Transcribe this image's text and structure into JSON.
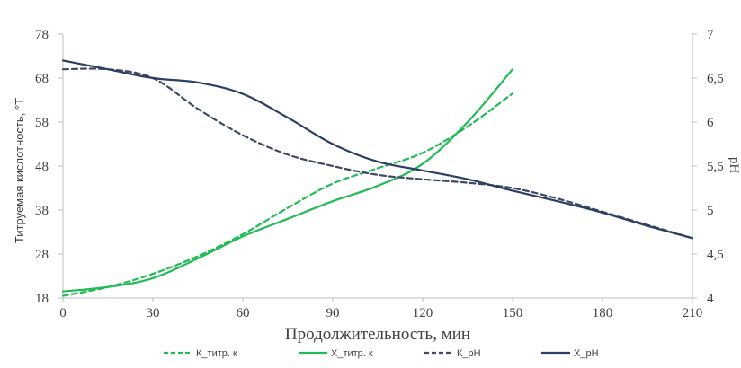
{
  "chart_data": {
    "type": "line",
    "xlabel": "Продолжительность, мин",
    "ylabel": "Титруемая кислотность, °Т",
    "y2label": "pH",
    "x_ticks": [
      "0",
      "30",
      "60",
      "90",
      "120",
      "150",
      "180",
      "210"
    ],
    "y_ticks": [
      "18",
      "28",
      "38",
      "48",
      "58",
      "68",
      "78"
    ],
    "y2_ticks": [
      "4",
      "4,5",
      "5",
      "5,5",
      "6",
      "6,5",
      "7"
    ],
    "xlim": [
      0,
      210
    ],
    "ylim": [
      18,
      78
    ],
    "y2lim": [
      4,
      7
    ],
    "grid": false,
    "legend_position": "bottom",
    "colors": {
      "green": "#22bb55",
      "navy": "#2d3e63",
      "axis": "#bfbfbf"
    },
    "series": [
      {
        "name": "К_титр. к",
        "axis": "left",
        "style": "dashed",
        "color": "#22bb55",
        "x": [
          0,
          15,
          30,
          45,
          60,
          75,
          90,
          105,
          120,
          135,
          150
        ],
        "values": [
          18.5,
          20.5,
          23.5,
          27.5,
          32.5,
          38.5,
          44,
          47.5,
          51,
          57,
          64.5
        ]
      },
      {
        "name": "Х_титр. к",
        "axis": "left",
        "style": "solid",
        "color": "#22bb55",
        "x": [
          0,
          15,
          30,
          45,
          60,
          75,
          90,
          105,
          120,
          135,
          150
        ],
        "values": [
          19.5,
          20.5,
          22.5,
          27,
          32,
          36,
          40,
          43.5,
          48.5,
          58,
          70
        ]
      },
      {
        "name": "К_pH",
        "axis": "right",
        "style": "dashed",
        "color": "#3d4a66",
        "x": [
          0,
          15,
          30,
          45,
          60,
          75,
          90,
          105,
          120,
          135,
          150,
          165,
          180,
          195,
          210
        ],
        "values": [
          6.6,
          6.6,
          6.5,
          6.15,
          5.85,
          5.63,
          5.5,
          5.4,
          5.35,
          5.31,
          5.25,
          5.13,
          4.98,
          4.83,
          4.68
        ]
      },
      {
        "name": "Х_pH",
        "axis": "right",
        "style": "solid",
        "color": "#2d3e63",
        "x": [
          0,
          15,
          30,
          45,
          60,
          75,
          90,
          105,
          120,
          135,
          150,
          165,
          180,
          195,
          210
        ],
        "values": [
          6.7,
          6.6,
          6.5,
          6.45,
          6.32,
          6.05,
          5.75,
          5.55,
          5.45,
          5.35,
          5.22,
          5.1,
          4.97,
          4.82,
          4.68
        ]
      }
    ]
  }
}
